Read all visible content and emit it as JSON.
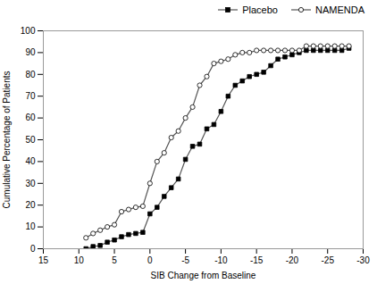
{
  "chart_data": {
    "type": "line",
    "xlabel": "SIB Change from Baseline",
    "ylabel": "Cumulative Percentage of Patients",
    "x": [
      9,
      8,
      7,
      6,
      5,
      4,
      3,
      2,
      1,
      0,
      -1,
      -2,
      -3,
      -4,
      -5,
      -6,
      -7,
      -8,
      -9,
      -10,
      -11,
      -12,
      -13,
      -14,
      -15,
      -16,
      -17,
      -18,
      -19,
      -20,
      -21,
      -22,
      -23,
      -24,
      -25,
      -26,
      -27,
      -28
    ],
    "series": [
      {
        "name": "Placebo",
        "color": "#555555",
        "marker": "square",
        "values": [
          0,
          1,
          1.5,
          3,
          4,
          5.5,
          6.5,
          7,
          7.5,
          16,
          19,
          24,
          28,
          32,
          41,
          47,
          48,
          55,
          57,
          63,
          70,
          75,
          77,
          79,
          80,
          81,
          84,
          87,
          88,
          89,
          90,
          91,
          91,
          91,
          91,
          91,
          91,
          92
        ]
      },
      {
        "name": "NAMENDA",
        "color": "#555555",
        "marker": "circle",
        "values": [
          5,
          7,
          8.5,
          10,
          11,
          17,
          18,
          19,
          19.5,
          30,
          40,
          44,
          51,
          54,
          60,
          65,
          75,
          79,
          85,
          86,
          87,
          89,
          90,
          90,
          91,
          91,
          91,
          91,
          91,
          91,
          91,
          93,
          93,
          93,
          93,
          93,
          93,
          93
        ]
      }
    ],
    "xlim": [
      15,
      -30
    ],
    "ylim": [
      0,
      100
    ],
    "xticks": [
      15,
      10,
      5,
      0,
      -5,
      -10,
      -15,
      -20,
      -25,
      -30
    ],
    "yticks": [
      0,
      10,
      20,
      30,
      40,
      50,
      60,
      70,
      80,
      90,
      100
    ],
    "grid": false,
    "legend": "lower right"
  }
}
